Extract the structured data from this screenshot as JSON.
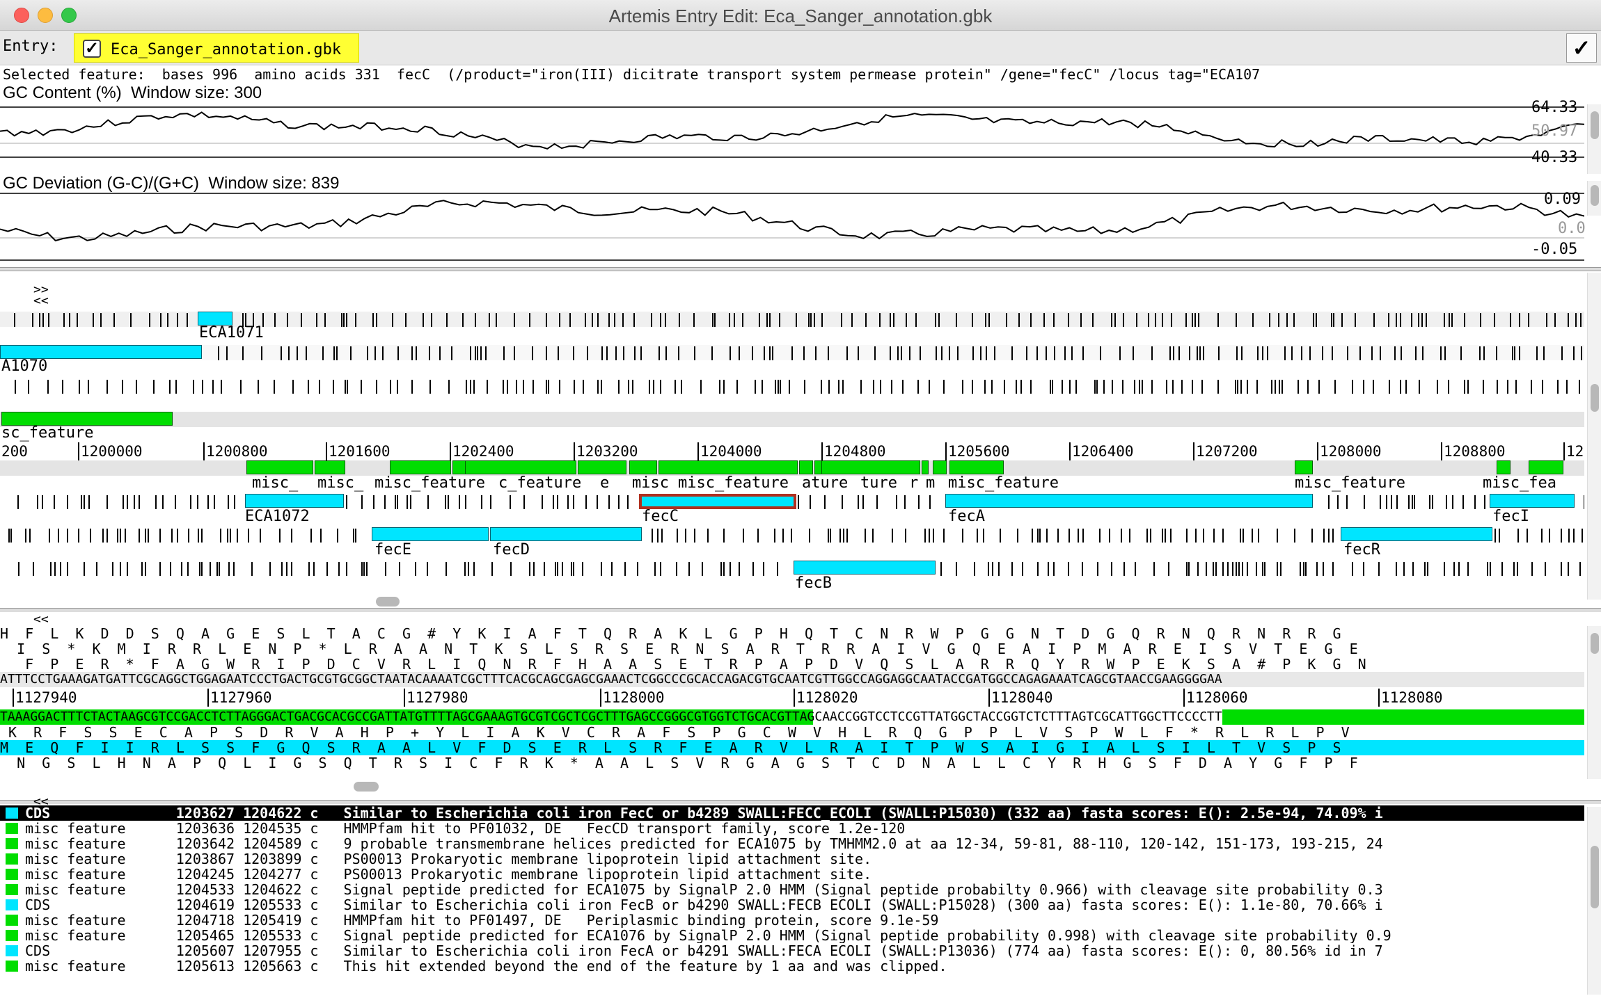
{
  "window": {
    "title": "Artemis Entry Edit: Eca_Sanger_annotation.gbk"
  },
  "entry_bar": {
    "label": "Entry:",
    "entry_name": "Eca_Sanger_annotation.gbk",
    "checkbox_checked": true,
    "ok_glyph": "✓"
  },
  "selected_feature": {
    "text": "Selected feature:  bases 996  amino acids 331  fecC  (/product=\"iron(III) dicitrate transport system permease protein\" /gene=\"fecC\" /locus tag=\"ECA107"
  },
  "gc_content": {
    "title": "GC Content (%)  Window size: 300",
    "max_label": "64.33",
    "avg_label": "50.97",
    "min_label": "40.33"
  },
  "gc_deviation": {
    "title": "GC Deviation (G-C)/(G+C)  Window size: 839",
    "max_label": "0.09",
    "zero_label": "0.0",
    "min_label": "-0.05"
  },
  "overview": {
    "nav_forward": ">>",
    "nav_back": "<<",
    "upper_labels": [
      "ECA1071",
      "A1070",
      "sc_feature"
    ],
    "ruler_ticks": [
      "200",
      "1200000",
      "1200800",
      "1201600",
      "1202400",
      "1203200",
      "1204000",
      "1204800",
      "1205600",
      "1206400",
      "1207200",
      "1208000",
      "1208800",
      "12"
    ],
    "misc_labels": [
      "misc_",
      "misc_",
      "misc_feature",
      "c_feature",
      "e",
      "misc",
      "misc_feature",
      "ature",
      "ture",
      "r",
      "m",
      "misc_feature",
      "misc_feature",
      "misc_fea"
    ],
    "cds_labels": [
      "ECA1072",
      "fecC",
      "fecA",
      "fecI",
      "fecE",
      "fecD",
      "fecR",
      "fecB"
    ]
  },
  "sequence": {
    "nav_back": "<<",
    "frame1": "H  F  L  K  D  D  S  Q  A  G  E  S  L  T  A  C  G  #  Y  K  I  A  F  T  Q  R  A  K  L  G  P  H  Q  T  C  N  R  W  P  G  G  N  T  D  G  Q  R  N  Q  R  N  R  R  G",
    "frame2": "  I  S  *  K  M  I  R  R  L  E  N  P  *  L  R  A  A  N  T  K  S  L  S  R  S  E  R  N  S  A  R  T  R  R  A  I  V  G  Q  E  A  I  P  M  A  R  E  I  S  V  T  E  G  E",
    "frame3": "   F  P  E  R  *  F  A  G  W  R  I  P  D  C  V  R  L  I  Q  N  R  F  H  A  A  S  E  T  R  P  A  P  D  V  Q  S  L  A  R  R  Q  Y  R  W  P  E  K  S  A  #  P  K  G  N",
    "forward_dna": "ATTTCCTGAAAGATGATTCGCAGGCTGGAGAATCCCTGACTGCGTGCGGCTAATACAAAATCGCTTTCACGCAGCGAGCGAAACTCGGCCCGCACCAGACGTGCAATCGTTGGCCAGGAGGCAATACCGATGGCCAGAGAAATCAGCGTAACCGAAGGGGAA",
    "ruler_ticks": [
      "1127940",
      "1127960",
      "1127980",
      "1128000",
      "1128020",
      "1128040",
      "1128060",
      "1128080"
    ],
    "reverse_dna": "TAAAGGACTTTCTACTAAGCGTCCGACCTCTTAGGGACTGACGCACGCCGATTATGTTTTAGCGAAAGTGCGTCGCTCGCTTTGAGCCGGGCGTGGTCTGCACGTTAGCAACCGGTCCTCCGTTATGGCTACCGGTCTCTTTAGTCGCATTGGCTTCCCCTT",
    "rframe1": " K  R  F  S  S  E  C  A  P  S  D  R  V  A  H  P  +  Y  L  I  A  K  V  C  R  A  F  S  P  G  C  W  V  H  L  R  Q  G  P  P  L  V  S  P  W  L  F  *  R  L  R  L  P  V",
    "rframe2": "M  E  Q  F  I  I  R  L  S  S  F  G  Q  S  R  A  A  L  V  F  D  S  E  R  L  S  R  F  E  A  R  V  L  R  A  I  T  P  W  S  A  I  G  I  A  L  S  I  L  T  V  S  P  S",
    "rframe3": "  N  G  S  L  H  N  A  P  Q  L  I  G  S  Q  T  R  S  I  C  F  R  K  *  A  A  L  S  V  R  G  A  G  S  T  C  D  N  A  L  L  C  Y  R  H  G  S  F  D  A  Y  G  F  P  F"
  },
  "feature_list": {
    "nav_back": "<<",
    "rows": [
      {
        "key": "CDS",
        "start": "1203627",
        "end": "1204622",
        "strand": "c",
        "note": "Similar to Escherichia coli iron FecC or b4289 SWALL:FECC_ECOLI (SWALL:P15030) (332 aa) fasta scores: E(): 2.5e-94, 74.09% i"
      },
      {
        "key": "misc_feature",
        "start": "1203636",
        "end": "1204535",
        "strand": "c",
        "note": "HMMPfam hit to PF01032, DE   FecCD transport family, score 1.2e-120"
      },
      {
        "key": "misc_feature",
        "start": "1203642",
        "end": "1204589",
        "strand": "c",
        "note": "9 probable transmembrane helices predicted for ECA1075 by TMHMM2.0 at aa 12-34, 59-81, 88-110, 120-142, 151-173, 193-215, 24"
      },
      {
        "key": "misc_feature",
        "start": "1203867",
        "end": "1203899",
        "strand": "c",
        "note": "PS00013 Prokaryotic membrane lipoprotein lipid attachment site."
      },
      {
        "key": "misc_feature",
        "start": "1204245",
        "end": "1204277",
        "strand": "c",
        "note": "PS00013 Prokaryotic membrane lipoprotein lipid attachment site."
      },
      {
        "key": "misc_feature",
        "start": "1204533",
        "end": "1204622",
        "strand": "c",
        "note": "Signal peptide predicted for ECA1075 by SignalP 2.0 HMM (Signal peptide probabilty 0.966) with cleavage site probability 0.3"
      },
      {
        "key": "CDS",
        "start": "1204619",
        "end": "1205533",
        "strand": "c",
        "note": "Similar to Escherichia coli iron FecB or b4290 SWALL:FECB_ECOLI (SWALL:P15028) (300 aa) fasta scores: E(): 1.1e-80, 70.66% i"
      },
      {
        "key": "misc_feature",
        "start": "1204718",
        "end": "1205419",
        "strand": "c",
        "note": "HMMPfam hit to PF01497, DE   Periplasmic binding protein, score 9.1e-59"
      },
      {
        "key": "misc_feature",
        "start": "1205465",
        "end": "1205533",
        "strand": "c",
        "note": "Signal peptide predicted for ECA1076 by SignalP 2.0 HMM (Signal peptide probability 0.998) with cleavage site probability 0.9"
      },
      {
        "key": "CDS",
        "start": "1205607",
        "end": "1207955",
        "strand": "c",
        "note": "Similar to Escherichia coli iron FecA or b4291 SWALL:FECA_ECOLI (SWALL:P13036) (774 aa) fasta scores: E(): 0, 80.56% id in 7"
      },
      {
        "key": "misc_feature",
        "start": "1205613",
        "end": "1205663",
        "strand": "c",
        "note": "This hit extended beyond the end of the feature by 1 aa and was clipped."
      }
    ]
  },
  "colors": {
    "cds": "#00e5ff",
    "misc_feature": "#00dd00",
    "entry_highlight": "#ffff33",
    "selected_border": "#b03020"
  }
}
